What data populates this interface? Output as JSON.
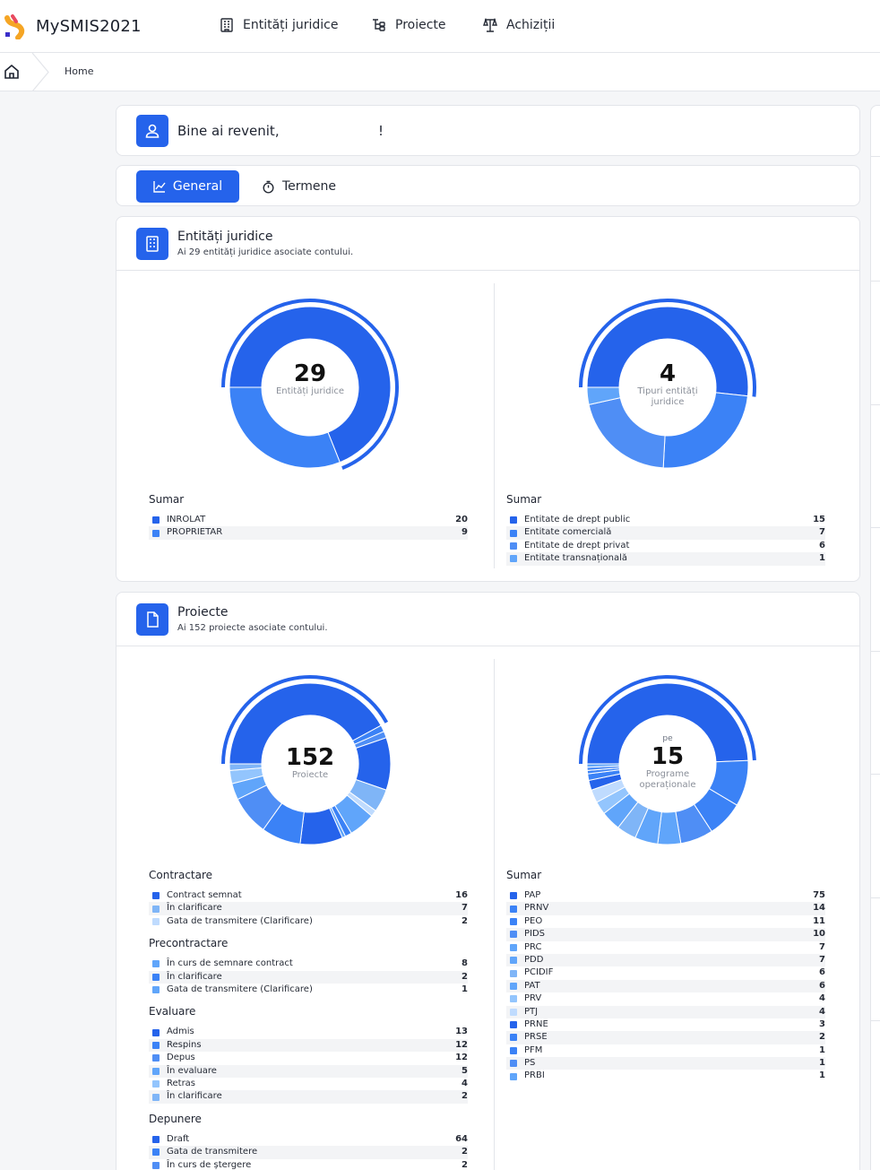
{
  "app": {
    "title": "MySMIS2021"
  },
  "nav": {
    "items": [
      {
        "label": "Entități juridice",
        "icon": "building-icon"
      },
      {
        "label": "Proiecte",
        "icon": "tree-icon"
      },
      {
        "label": "Achiziții",
        "icon": "scale-icon"
      }
    ]
  },
  "breadcrumb": {
    "home": "Home"
  },
  "welcome": {
    "text": "Bine ai revenit,",
    "bang": "!"
  },
  "tabs": [
    {
      "label": "General",
      "icon": "chart-icon"
    },
    {
      "label": "Termene",
      "icon": "timer-icon"
    }
  ],
  "entities": {
    "title": "Entități juridice",
    "subtitle": "Ai 29 entități juridice asociate contului.",
    "left": {
      "center_number": "29",
      "center_label": "Entități juridice",
      "summary_title": "Sumar",
      "rows": [
        {
          "label": "INROLAT",
          "value": "20"
        },
        {
          "label": "PROPRIETAR",
          "value": "9"
        }
      ]
    },
    "right": {
      "center_number": "4",
      "center_label": "Tipuri entități juridice",
      "summary_title": "Sumar",
      "rows": [
        {
          "label": "Entitate de drept public",
          "value": "15"
        },
        {
          "label": "Entitate comercială",
          "value": "7"
        },
        {
          "label": "Entitate de drept privat",
          "value": "6"
        },
        {
          "label": "Entitate transnațională",
          "value": "1"
        }
      ]
    }
  },
  "projects": {
    "title": "Proiecte",
    "subtitle": "Ai 152 proiecte asociate contului.",
    "left": {
      "center_number": "152",
      "center_label": "Proiecte",
      "groups": [
        {
          "title": "Contractare",
          "rows": [
            {
              "label": "Contract semnat",
              "value": "16"
            },
            {
              "label": "În clarificare",
              "value": "7"
            },
            {
              "label": "Gata de transmitere (Clarificare)",
              "value": "2"
            }
          ]
        },
        {
          "title": "Precontractare",
          "rows": [
            {
              "label": "În curs de semnare contract",
              "value": "8"
            },
            {
              "label": "În clarificare",
              "value": "2"
            },
            {
              "label": "Gata de transmitere (Clarificare)",
              "value": "1"
            }
          ]
        },
        {
          "title": "Evaluare",
          "rows": [
            {
              "label": "Admis",
              "value": "13"
            },
            {
              "label": "Respins",
              "value": "12"
            },
            {
              "label": "Depus",
              "value": "12"
            },
            {
              "label": "În evaluare",
              "value": "5"
            },
            {
              "label": "Retras",
              "value": "4"
            },
            {
              "label": "În clarificare",
              "value": "2"
            }
          ]
        },
        {
          "title": "Depunere",
          "rows": [
            {
              "label": "Draft",
              "value": "64"
            },
            {
              "label": "Gata de transmitere",
              "value": "2"
            },
            {
              "label": "În curs de ștergere",
              "value": "2"
            }
          ]
        }
      ]
    },
    "right": {
      "center_pre": "pe",
      "center_number": "15",
      "center_label": "Programe operaționale",
      "summary_title": "Sumar",
      "rows": [
        {
          "label": "PAP",
          "value": "75"
        },
        {
          "label": "PRNV",
          "value": "14"
        },
        {
          "label": "PEO",
          "value": "11"
        },
        {
          "label": "PIDS",
          "value": "10"
        },
        {
          "label": "PRC",
          "value": "7"
        },
        {
          "label": "PDD",
          "value": "7"
        },
        {
          "label": "PCIDIF",
          "value": "6"
        },
        {
          "label": "PAT",
          "value": "6"
        },
        {
          "label": "PRV",
          "value": "4"
        },
        {
          "label": "PTJ",
          "value": "4"
        },
        {
          "label": "PRNE",
          "value": "3"
        },
        {
          "label": "PRSE",
          "value": "2"
        },
        {
          "label": "PFM",
          "value": "1"
        },
        {
          "label": "PS",
          "value": "1"
        },
        {
          "label": "PRBI",
          "value": "1"
        }
      ]
    }
  },
  "colors": {
    "accent": "#2563eb",
    "palette": [
      "#2563eb",
      "#3b82f6",
      "#4f8ef5",
      "#60a5fa",
      "#7fb5f7",
      "#93c5fd",
      "#bfdbfe"
    ]
  }
}
